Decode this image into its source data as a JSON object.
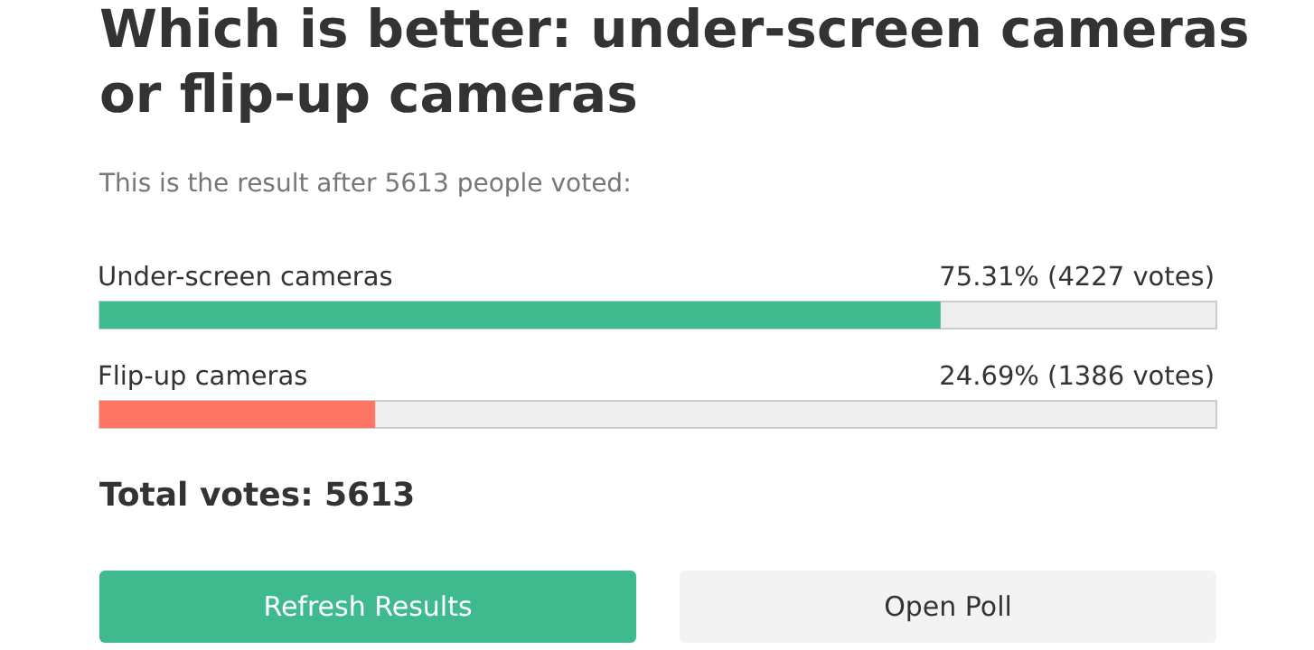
{
  "chart_data": {
    "type": "bar",
    "orientation": "horizontal",
    "title": "Which is better: under-screen cameras or flip-up cameras",
    "subtitle": "This is the result after 5613 people voted:",
    "categories": [
      "Under-screen cameras",
      "Flip-up cameras"
    ],
    "values": [
      75.31,
      24.69
    ],
    "colors": [
      "#3fba8f",
      "#ff7563"
    ],
    "value_labels": [
      "75.31% (4227 votes)",
      "24.69% (1386 votes)"
    ],
    "xlim": [
      0,
      100
    ],
    "tick_labels": false,
    "grid": false,
    "annotations": [
      "Total votes: 5613",
      "Refresh Results",
      "Open Poll"
    ]
  }
}
